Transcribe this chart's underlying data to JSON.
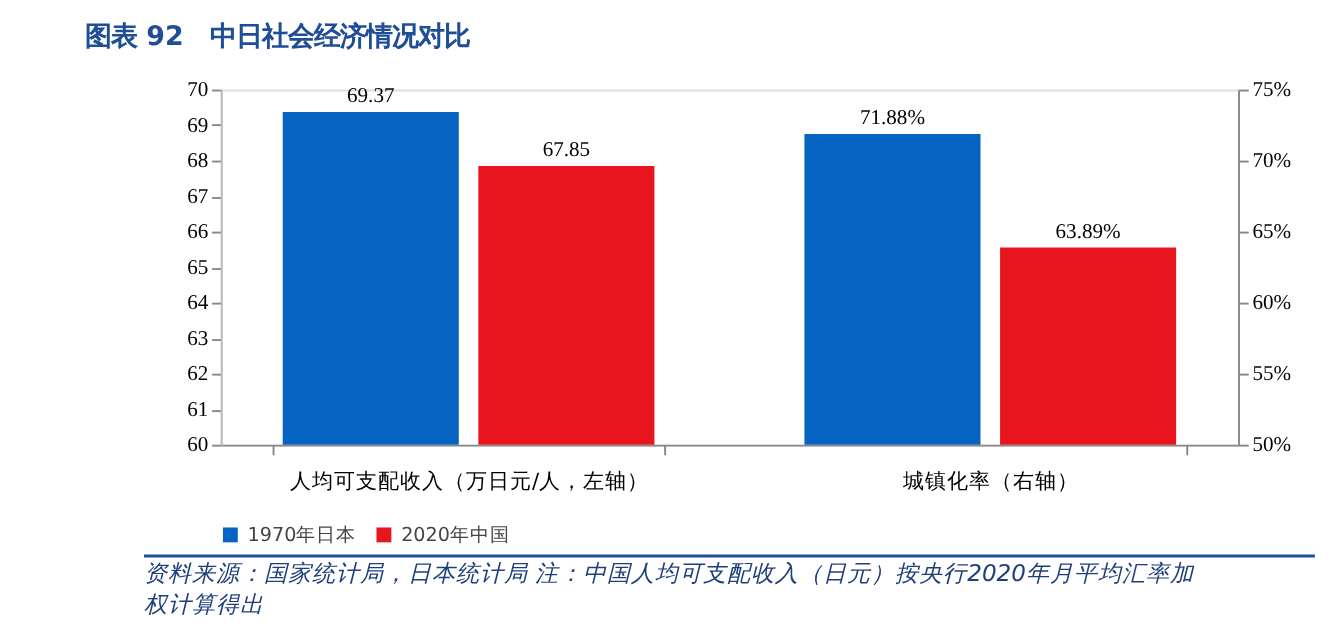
{
  "chart_data": {
    "type": "bar",
    "title": "图表 92　中日社会经济情况对比",
    "categories": [
      "人均可支配收入（万日元/人，左轴）",
      "城镇化率（右轴）"
    ],
    "series": [
      {
        "name": "1970年日本",
        "color": "#0563c1",
        "values": [
          69.37,
          null
        ],
        "value_labels": [
          "69.37",
          null
        ]
      },
      {
        "name": "2020年中国",
        "color": "#e8141e",
        "values": [
          67.85,
          null
        ],
        "value_labels": [
          "67.85",
          null
        ]
      },
      {
        "color": "#0563c1",
        "axis": "y2",
        "values": [
          null,
          71.88
        ],
        "value_labels": [
          null,
          "71.88%"
        ]
      },
      {
        "color": "#e8141e",
        "axis": "y2",
        "values": [
          null,
          63.89
        ],
        "value_labels": [
          null,
          "63.89%"
        ]
      }
    ],
    "ylim": [
      60,
      70
    ],
    "yticks": [
      60,
      61,
      62,
      63,
      64,
      65,
      66,
      67,
      68,
      69,
      70
    ],
    "y2lim": [
      50,
      75
    ],
    "y2ticks": [
      {
        "value": 50,
        "label": "50%"
      },
      {
        "value": 55,
        "label": "55%"
      },
      {
        "value": 60,
        "label": "60%"
      },
      {
        "value": 65,
        "label": "65%"
      },
      {
        "value": 70,
        "label": "70%"
      },
      {
        "value": 75,
        "label": "75%"
      }
    ],
    "legend": "bottom",
    "grid": false,
    "annotations": [
      "资料来源：国家统计局，日本统计局 注：中国人均可支配收入（日元）按央行2020年月平均汇率加权计算得出"
    ]
  }
}
